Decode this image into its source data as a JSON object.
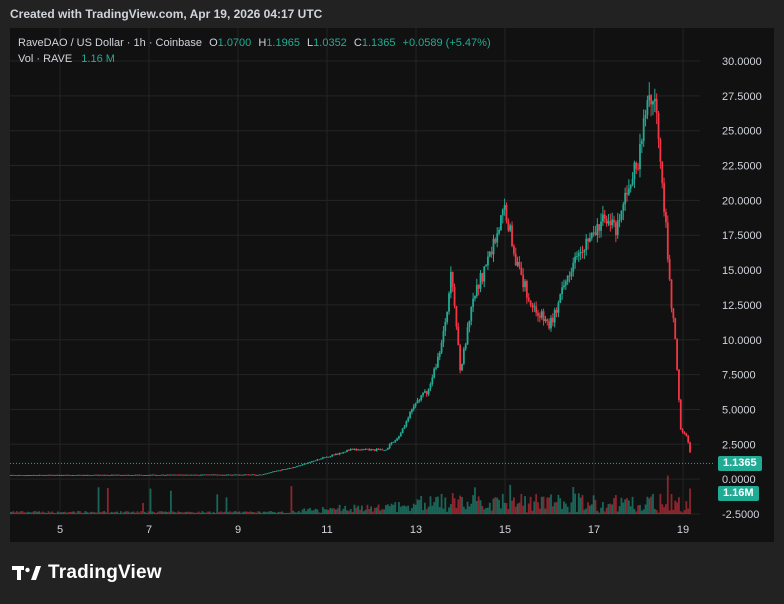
{
  "header": {
    "created": "Created with TradingView.com, Apr 19, 2026 04:17 UTC"
  },
  "legend": {
    "symbol": "RaveDAO / US Dollar · 1h · Coinbase",
    "open_label": "O",
    "open": "1.0700",
    "high_label": "H",
    "high": "1.1965",
    "low_label": "L",
    "low": "1.0352",
    "close_label": "C",
    "close": "1.1365",
    "change": "+0.0589 (+5.47%)",
    "vol_label": "Vol · RAVE",
    "vol_value": "1.16 M"
  },
  "price_tag": "1.1365",
  "volume_tag": "1.16M",
  "footer": {
    "brand": "TradingView"
  },
  "colors": {
    "up": "#22ab94",
    "down": "#f23645",
    "background": "#111111",
    "grid": "#242424",
    "text": "#d1d4dc"
  },
  "chart_data": {
    "type": "candlestick",
    "symbol": "RaveDAO / US Dollar",
    "interval": "1h",
    "exchange": "Coinbase",
    "y_ticks": [
      "30.0000",
      "27.5000",
      "25.0000",
      "22.5000",
      "20.0000",
      "17.5000",
      "15.0000",
      "12.5000",
      "10.0000",
      "7.5000",
      "5.0000",
      "2.5000",
      "0.0000",
      "-2.5000"
    ],
    "x_ticks": [
      "5",
      "7",
      "9",
      "11",
      "13",
      "15",
      "17",
      "19"
    ],
    "ylim": [
      -2.5,
      30
    ],
    "grid": true,
    "last_price": 1.1365,
    "trajectory": [
      {
        "day": 3.7,
        "price": 0.28
      },
      {
        "day": 9.5,
        "price": 0.32
      },
      {
        "day": 10.3,
        "price": 0.9
      },
      {
        "day": 11.0,
        "price": 1.6
      },
      {
        "day": 11.5,
        "price": 2.1
      },
      {
        "day": 12.3,
        "price": 2.1
      },
      {
        "day": 12.6,
        "price": 3.0
      },
      {
        "day": 13.0,
        "price": 5.5
      },
      {
        "day": 13.3,
        "price": 6.5
      },
      {
        "day": 13.6,
        "price": 10.0
      },
      {
        "day": 13.8,
        "price": 14.8
      },
      {
        "day": 14.0,
        "price": 7.8
      },
      {
        "day": 14.3,
        "price": 13.0
      },
      {
        "day": 14.7,
        "price": 16.5
      },
      {
        "day": 15.0,
        "price": 19.5
      },
      {
        "day": 15.3,
        "price": 15.0
      },
      {
        "day": 15.6,
        "price": 12.5
      },
      {
        "day": 16.0,
        "price": 11.0
      },
      {
        "day": 16.2,
        "price": 12.5
      },
      {
        "day": 16.6,
        "price": 16.5
      },
      {
        "day": 17.0,
        "price": 17.5
      },
      {
        "day": 17.3,
        "price": 19.0
      },
      {
        "day": 17.5,
        "price": 17.5
      },
      {
        "day": 17.8,
        "price": 21.5
      },
      {
        "day": 18.0,
        "price": 22.5
      },
      {
        "day": 18.2,
        "price": 27.5
      },
      {
        "day": 18.4,
        "price": 27.0
      },
      {
        "day": 18.55,
        "price": 21.0
      },
      {
        "day": 18.7,
        "price": 14.0
      },
      {
        "day": 18.85,
        "price": 9.0
      },
      {
        "day": 18.95,
        "price": 3.5
      },
      {
        "day": 19.1,
        "price": 3.0
      },
      {
        "day": 19.2,
        "price": 1.1365
      }
    ]
  }
}
